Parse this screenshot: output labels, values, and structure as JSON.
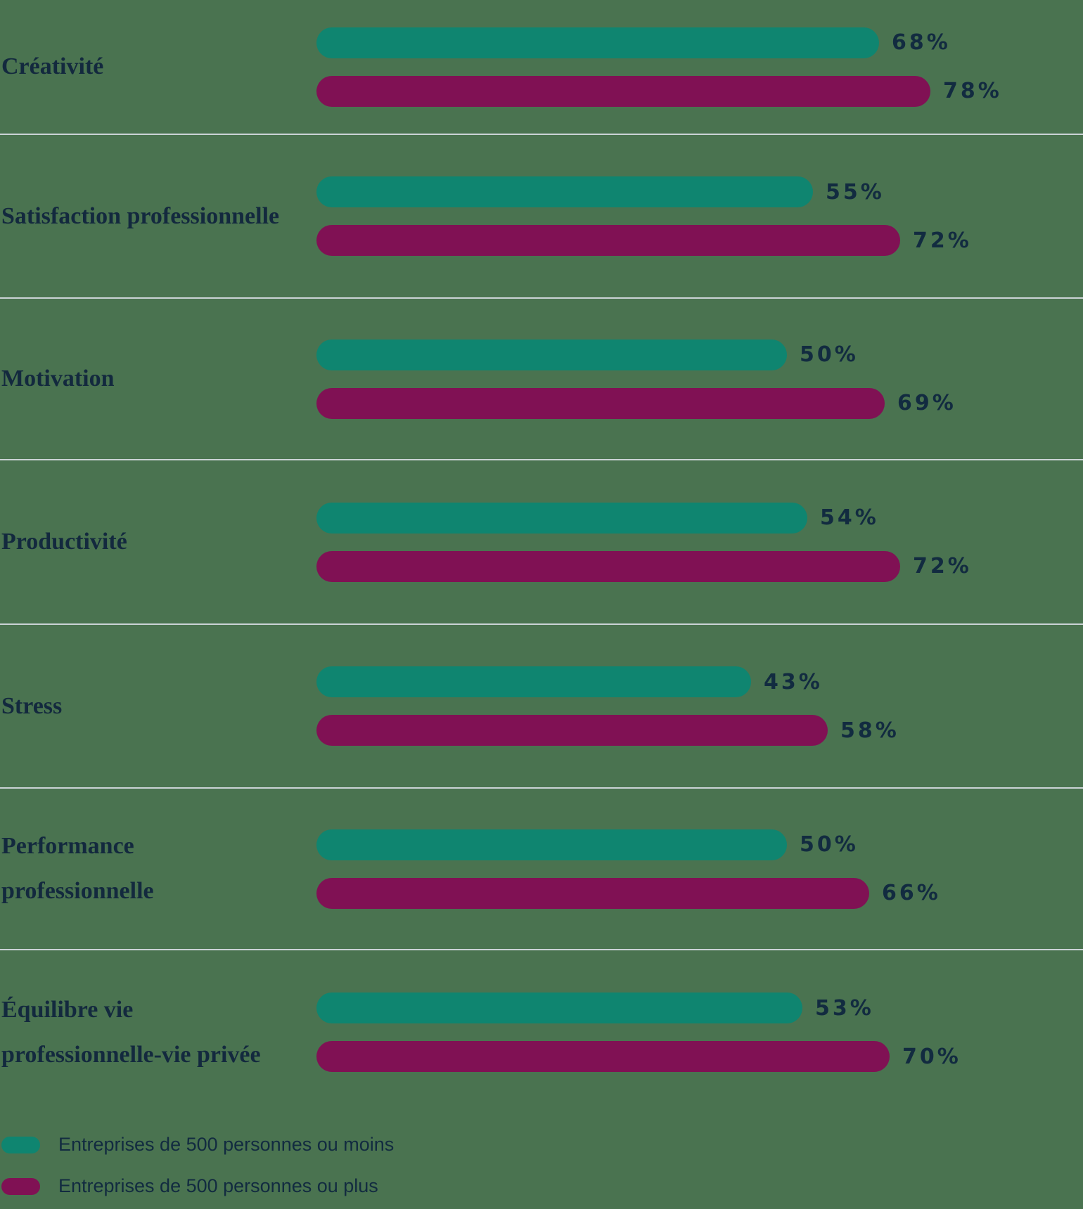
{
  "chart_data": {
    "type": "bar",
    "orientation": "horizontal",
    "title": "",
    "categories": [
      "Créativité",
      "Satisfaction professionnelle",
      "Motivation",
      "Productivité",
      "Stress",
      "Performance professionnelle",
      "Équilibre vie professionnelle-vie privée"
    ],
    "series": [
      {
        "name": "Entreprises de 500 personnes ou moins",
        "color": "#0F8570",
        "values": [
          68,
          55,
          50,
          54,
          43,
          50,
          53
        ]
      },
      {
        "name": "Entreprises de 500 personnes ou plus",
        "color": "#801154",
        "values": [
          78,
          72,
          69,
          72,
          58,
          66,
          70
        ]
      }
    ],
    "value_labels": [
      [
        "68%",
        "78%"
      ],
      [
        "55%",
        "72%"
      ],
      [
        "50%",
        "69%"
      ],
      [
        "54%",
        "72%"
      ],
      [
        "43%",
        "58%"
      ],
      [
        "50%",
        "66%"
      ],
      [
        "53%",
        "70%"
      ]
    ],
    "value_suffix": "%",
    "xlim": [
      0,
      100
    ],
    "grid": "row-dividers",
    "legend_position": "bottom-left"
  },
  "legend": {
    "items": [
      {
        "label": "Entreprises de 500 personnes ou moins",
        "color": "#0F8570"
      },
      {
        "label": "Entreprises de 500 personnes ou plus",
        "color": "#801154"
      }
    ]
  },
  "colors": {
    "background": "#4A7350",
    "divider": "#CBD3D6",
    "label_text": "#13293E",
    "value_text": "#122B40",
    "bar_small_companies": "#0F8570",
    "bar_large_companies": "#801154"
  }
}
